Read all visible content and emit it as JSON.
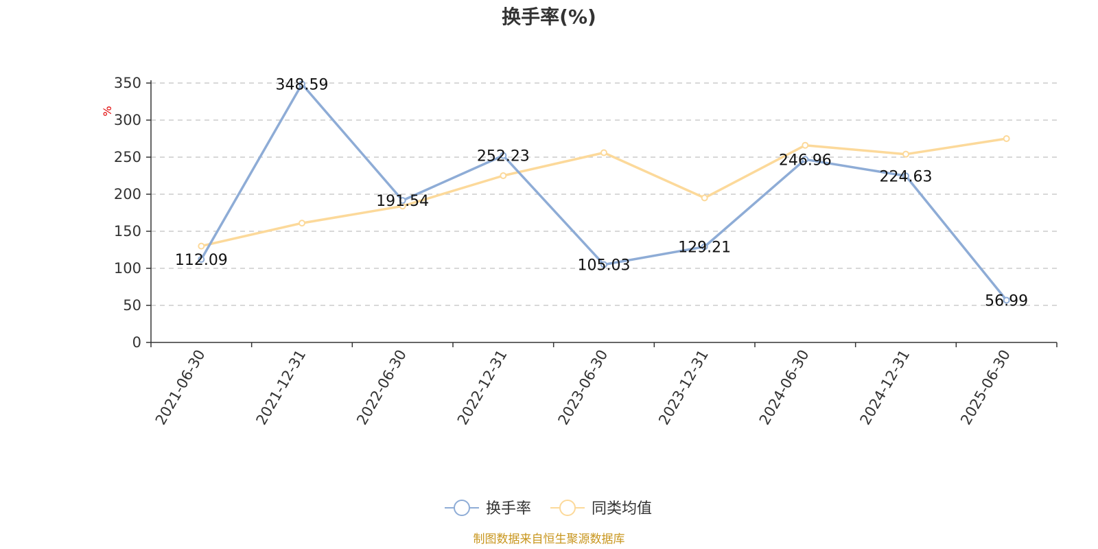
{
  "chart_data": {
    "type": "line",
    "title": "换手率(%)",
    "unit": "%",
    "categories": [
      "2021-06-30",
      "2021-12-31",
      "2022-06-30",
      "2022-12-31",
      "2023-06-30",
      "2023-12-31",
      "2024-06-30",
      "2024-12-31",
      "2025-06-30"
    ],
    "ylim": [
      0,
      350
    ],
    "yticks": [
      0,
      50,
      100,
      150,
      200,
      250,
      300,
      350
    ],
    "grid": true,
    "legend_position": "bottom-center",
    "series": [
      {
        "name": "换手率",
        "color": "#8eacd6",
        "values": [
          112.09,
          348.59,
          191.54,
          252.23,
          105.03,
          129.21,
          246.96,
          224.63,
          56.99
        ],
        "labels": [
          "112.09",
          "348.59",
          "191.54",
          "252.23",
          "105.03",
          "129.21",
          "246.96",
          "224.63",
          "56.99"
        ]
      },
      {
        "name": "同类均值",
        "color": "#fcd99a",
        "values": [
          130,
          161,
          184,
          225,
          256,
          195,
          266,
          254,
          275
        ]
      }
    ],
    "source": "制图数据来自恒生聚源数据库",
    "unit_color": "#e00000",
    "source_color": "#c8961e"
  }
}
